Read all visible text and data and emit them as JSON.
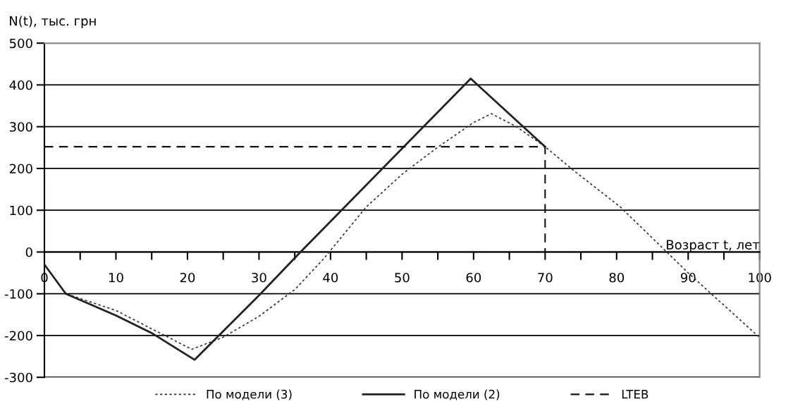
{
  "chart_data": {
    "type": "line",
    "xlabel": "Возраст t, лет",
    "ylabel": "N(t), тыс. грн",
    "xlim": [
      0,
      100
    ],
    "ylim": [
      -300,
      500
    ],
    "xticks": [
      0,
      {
        "value": 5,
        "label": null
      },
      10,
      {
        "value": 15,
        "label": null
      },
      20,
      {
        "value": 25,
        "label": null
      },
      30,
      {
        "value": 35,
        "label": null
      },
      40,
      {
        "value": 45,
        "label": null
      },
      50,
      {
        "value": 55,
        "label": null
      },
      60,
      {
        "value": 65,
        "label": null
      },
      70,
      {
        "value": 75,
        "label": null
      },
      80,
      {
        "value": 85,
        "label": null
      },
      90,
      {
        "value": 95,
        "label": null
      },
      100
    ],
    "yticks": [
      -300,
      -200,
      -100,
      0,
      100,
      200,
      300,
      400,
      500
    ],
    "grid": "y",
    "legend": "bottom",
    "marker": "none",
    "series": [
      {
        "name": "По модели (3)",
        "color": "#333333",
        "line_style": "dotted",
        "x": [
          0,
          3,
          10,
          15,
          20.6,
          25,
          30,
          35,
          39,
          45,
          50,
          55,
          60,
          62.5,
          66,
          70,
          74,
          80.5,
          87,
          90,
          100
        ],
        "values": [
          -30,
          -100,
          -140,
          -184,
          -233,
          -204,
          -154,
          -90,
          -17,
          108,
          186,
          251,
          310,
          331,
          300,
          252,
          195,
          108,
          0,
          -50,
          -205
        ]
      },
      {
        "name": "По модели (2)",
        "color": "#222222",
        "line_style": "solid",
        "x": [
          0,
          3,
          10,
          15,
          21,
          30,
          35.8,
          59.6,
          70
        ],
        "values": [
          -30,
          -100,
          -152,
          -194,
          -258,
          -104,
          0,
          415,
          252
        ]
      },
      {
        "name": "LTEB",
        "color": "#111111",
        "line_style": "dashed",
        "x": [
          0,
          70,
          70
        ],
        "values": [
          252,
          252,
          0
        ]
      }
    ]
  }
}
